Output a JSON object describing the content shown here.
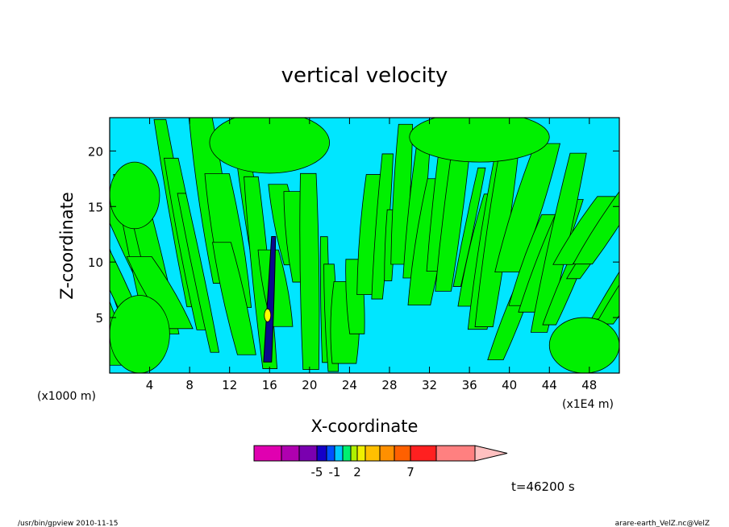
{
  "chart_data": {
    "type": "heatmap",
    "title": "vertical velocity",
    "xlabel": "X-coordinate",
    "ylabel": "Z-coordinate",
    "x_unit_left": "(x1000 m)",
    "x_unit_right": "(x1E4 m)",
    "xlim": [
      0,
      51
    ],
    "ylim": [
      0,
      23
    ],
    "x_ticks": [
      "4",
      "8",
      "12",
      "16",
      "20",
      "24",
      "28",
      "32",
      "36",
      "40",
      "44",
      "48"
    ],
    "y_ticks": [
      "5",
      "10",
      "15",
      "20"
    ],
    "grid": false,
    "colorbar": {
      "colors": [
        "#e000b0",
        "#b000b0",
        "#7a00b0",
        "#1400c8",
        "#0050ff",
        "#00c8ff",
        "#00f070",
        "#b0f000",
        "#f0f000",
        "#ffc000",
        "#ff9000",
        "#ff6000",
        "#ff2020",
        "#ff8080",
        "#ffc0c0"
      ],
      "labels": [
        "-5",
        "-1",
        "2",
        "7"
      ]
    },
    "field_colors": {
      "negative": "#00e6ff",
      "positive": "#00f000",
      "strong_neg": "#0a0a8c",
      "strong_pos": "#ffff00",
      "contour": "#000000"
    },
    "time_label": "t=46200 s"
  },
  "footer": {
    "left": "/usr/bin/gpview   2010-11-15",
    "right": "arare-earth_VelZ.nc@VelZ"
  }
}
